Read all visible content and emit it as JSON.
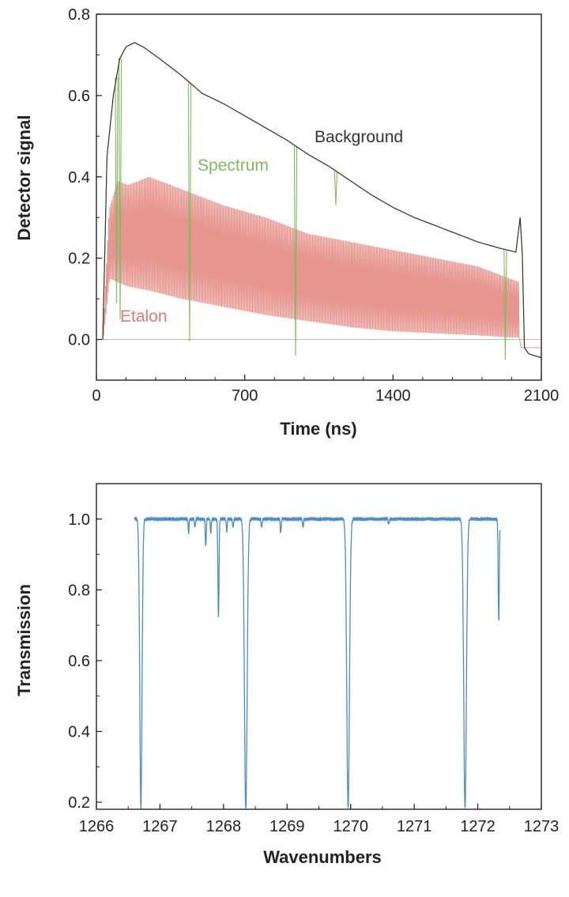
{
  "chart_data": [
    {
      "type": "line",
      "xlabel": "Time (ns)",
      "ylabel": "Detector signal",
      "xlim": [
        0,
        2100
      ],
      "ylim": [
        -0.1,
        0.8
      ],
      "xticks": [
        "0",
        "700",
        "1400",
        "2100"
      ],
      "yticks": [
        "0.0",
        "0.2",
        "0.4",
        "0.6",
        "0.8"
      ],
      "zero_line": true,
      "series": [
        {
          "name": "Background",
          "color": "#333333",
          "x": [
            30,
            50,
            80,
            110,
            140,
            180,
            220,
            300,
            400,
            500,
            600,
            700,
            800,
            900,
            1000,
            1100,
            1200,
            1300,
            1400,
            1500,
            1600,
            1700,
            1800,
            1900,
            1980,
            2000,
            2010,
            2020,
            2040,
            2100
          ],
          "y": [
            0.0,
            0.45,
            0.6,
            0.69,
            0.72,
            0.73,
            0.72,
            0.69,
            0.65,
            0.605,
            0.58,
            0.55,
            0.52,
            0.49,
            0.455,
            0.425,
            0.39,
            0.355,
            0.325,
            0.3,
            0.28,
            0.26,
            0.24,
            0.225,
            0.215,
            0.3,
            0.21,
            -0.02,
            -0.035,
            -0.045
          ]
        },
        {
          "name": "Spectrum",
          "color": "#7cbd5a",
          "x": [
            30,
            50,
            80,
            110,
            140,
            180,
            220,
            300,
            400,
            500,
            600,
            700,
            800,
            900,
            1000,
            1100,
            1200,
            1300,
            1400,
            1500,
            1600,
            1700,
            1800,
            1900,
            1980,
            2000,
            2010,
            2020,
            2040,
            2100
          ],
          "y": [
            0.0,
            0.45,
            0.6,
            0.69,
            0.72,
            0.73,
            0.72,
            0.69,
            0.65,
            0.605,
            0.58,
            0.55,
            0.52,
            0.49,
            0.455,
            0.425,
            0.39,
            0.355,
            0.325,
            0.3,
            0.28,
            0.26,
            0.24,
            0.225,
            0.215,
            0.3,
            0.21,
            -0.02,
            -0.035,
            -0.045
          ],
          "dips": [
            {
              "x": 95,
              "y": 0.09
            },
            {
              "x": 112,
              "y": 0.05
            },
            {
              "x": 440,
              "y": -0.005
            },
            {
              "x": 940,
              "y": -0.04
            },
            {
              "x": 1130,
              "y": 0.33
            },
            {
              "x": 1930,
              "y": -0.05
            }
          ]
        },
        {
          "name": "Etalon",
          "color": "#e07b73",
          "x": [
            30,
            60,
            100,
            150,
            250,
            400,
            600,
            800,
            1000,
            1200,
            1400,
            1600,
            1800,
            1950,
            2000,
            2010,
            2100
          ],
          "upper": [
            0.0,
            0.32,
            0.39,
            0.38,
            0.4,
            0.37,
            0.33,
            0.3,
            0.26,
            0.24,
            0.22,
            0.2,
            0.18,
            0.15,
            0.14,
            -0.02,
            -0.02
          ],
          "lower": [
            0.0,
            0.15,
            0.14,
            0.13,
            0.12,
            0.1,
            0.08,
            0.06,
            0.045,
            0.03,
            0.02,
            0.015,
            0.01,
            0.005,
            0.005,
            -0.02,
            -0.02
          ]
        }
      ],
      "annotations": [
        "Background",
        "Spectrum",
        "Etalon"
      ]
    },
    {
      "type": "line",
      "xlabel": "Wavenumbers",
      "ylabel": "Transmission",
      "xlim": [
        1266,
        1273
      ],
      "ylim": [
        0.18,
        1.1
      ],
      "xticks": [
        "1266",
        "1267",
        "1268",
        "1269",
        "1270",
        "1271",
        "1272",
        "1273"
      ],
      "yticks": [
        "0.2",
        "0.4",
        "0.6",
        "0.8",
        "1.0"
      ],
      "series": [
        {
          "color": "#4a8ccc",
          "x_range": [
            1266.6,
            1272.35
          ],
          "baseline": 1.0,
          "dips": [
            {
              "x": 1266.7,
              "y": 0.18,
              "w": 0.025
            },
            {
              "x": 1267.45,
              "y": 0.96,
              "w": 0.01
            },
            {
              "x": 1267.55,
              "y": 0.975,
              "w": 0.01
            },
            {
              "x": 1267.72,
              "y": 0.92,
              "w": 0.01
            },
            {
              "x": 1267.8,
              "y": 0.96,
              "w": 0.01
            },
            {
              "x": 1267.92,
              "y": 0.72,
              "w": 0.012
            },
            {
              "x": 1268.05,
              "y": 0.965,
              "w": 0.01
            },
            {
              "x": 1268.15,
              "y": 0.975,
              "w": 0.01
            },
            {
              "x": 1268.35,
              "y": 0.18,
              "w": 0.03
            },
            {
              "x": 1268.6,
              "y": 0.975,
              "w": 0.01
            },
            {
              "x": 1268.9,
              "y": 0.96,
              "w": 0.01
            },
            {
              "x": 1269.25,
              "y": 0.975,
              "w": 0.01
            },
            {
              "x": 1269.96,
              "y": 0.18,
              "w": 0.03
            },
            {
              "x": 1270.6,
              "y": 0.985,
              "w": 0.01
            },
            {
              "x": 1271.8,
              "y": 0.18,
              "w": 0.03
            },
            {
              "x": 1272.33,
              "y": 0.71,
              "w": 0.012
            }
          ]
        }
      ]
    }
  ]
}
